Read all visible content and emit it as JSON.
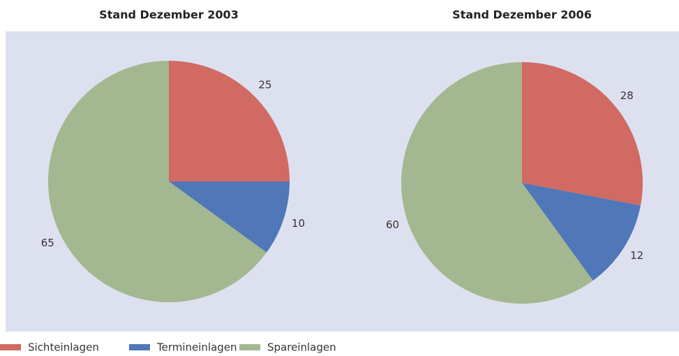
{
  "chart_data": [
    {
      "type": "pie",
      "title": "Stand Dezember 2003",
      "categories": [
        "Sichteinlagen",
        "Termineinlagen",
        "Spareinlagen"
      ],
      "values": [
        25,
        10,
        65
      ],
      "colors": [
        "#d06a63",
        "#5077b8",
        "#a3b890"
      ]
    },
    {
      "type": "pie",
      "title": "Stand Dezember 2006",
      "categories": [
        "Sichteinlagen",
        "Termineinlagen",
        "Spareinlagen"
      ],
      "values": [
        28,
        12,
        60
      ],
      "colors": [
        "#d06a63",
        "#5077b8",
        "#a3b890"
      ]
    }
  ]
}
